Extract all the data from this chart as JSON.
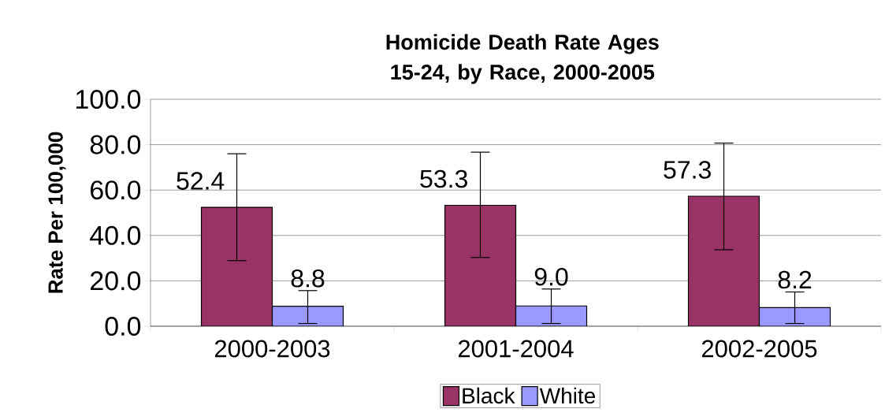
{
  "chart_data": {
    "type": "bar",
    "title": "Homicide Death Rate Ages 15-24, by Race, 2000-2005",
    "ylabel": "Rate Per 100,000",
    "categories": [
      "2000-2003",
      "2001-2004",
      "2002-2005"
    ],
    "series": [
      {
        "name": "Black",
        "color": "#993366",
        "values": [
          52.4,
          53.3,
          57.3
        ],
        "errors": [
          [
            28.9,
            76.0
          ],
          [
            30.3,
            76.7
          ],
          [
            33.7,
            80.7
          ]
        ],
        "value_labels": [
          "52.4",
          "53.3",
          "57.3"
        ]
      },
      {
        "name": "White",
        "color": "#9999ff",
        "values": [
          8.8,
          9.0,
          8.2
        ],
        "errors": [
          [
            1.2,
            15.7
          ],
          [
            1.2,
            16.4
          ],
          [
            1.2,
            15.1
          ]
        ],
        "value_labels": [
          "8.8",
          "9.0",
          "8.2"
        ]
      }
    ],
    "ylim": [
      0,
      100
    ],
    "yticks": [
      {
        "value": 0,
        "label": "0.0"
      },
      {
        "value": 20,
        "label": "20.0"
      },
      {
        "value": 40,
        "label": "40.0"
      },
      {
        "value": 60,
        "label": "60.0"
      },
      {
        "value": 80,
        "label": "80.0"
      },
      {
        "value": 100,
        "label": "100.0"
      }
    ],
    "grid": "y",
    "legend": "bottom"
  }
}
